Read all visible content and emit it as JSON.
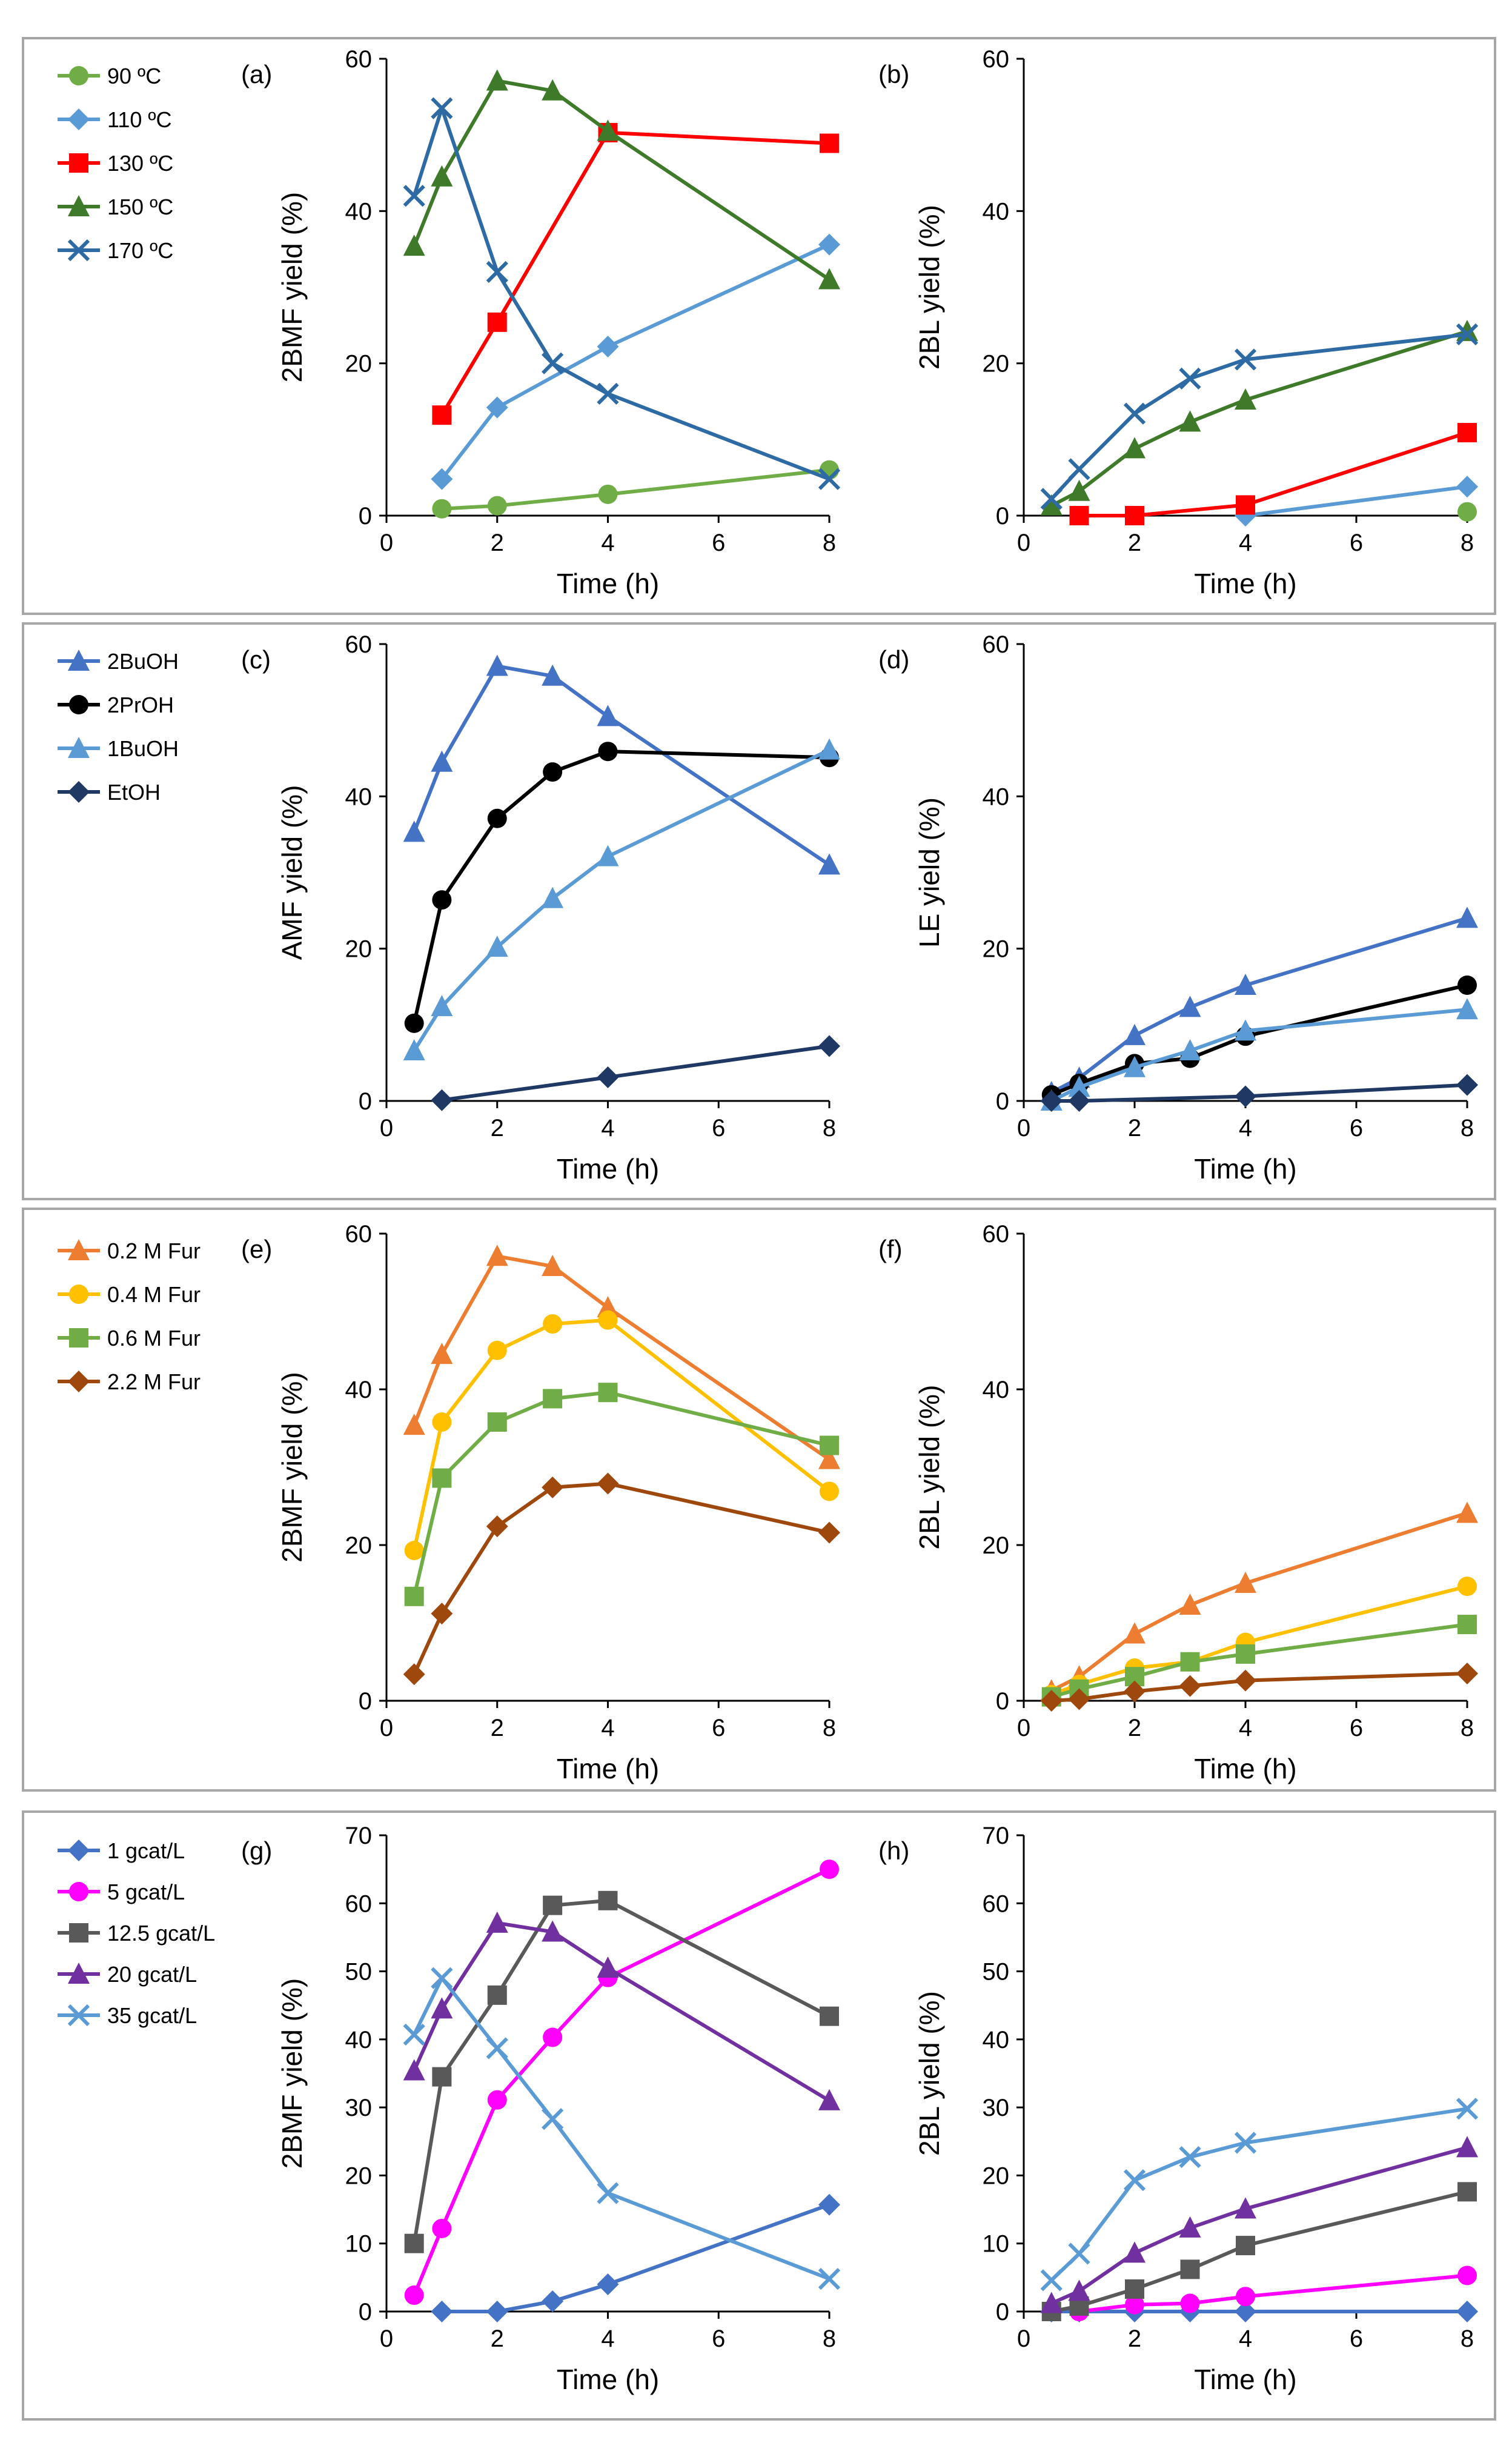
{
  "figure": "Time-course yields for panels (a)-(h)",
  "chart_data": [
    {
      "id": "a",
      "type": "line",
      "panel_label": "(a)",
      "xlabel": "Time (h)",
      "ylabel": "2BMF yield (%)",
      "xlim": [
        0,
        8
      ],
      "xticks": [
        0,
        2,
        4,
        6,
        8
      ],
      "ylim": [
        0,
        60
      ],
      "yticks": [
        0,
        20,
        40,
        60
      ],
      "legend": "left",
      "series": [
        {
          "name": "90 ºC",
          "color": "#70ad47",
          "marker": "circle",
          "x": [
            1,
            2,
            4,
            8
          ],
          "y": [
            0.9,
            1.3,
            2.8,
            6.0
          ]
        },
        {
          "name": "110 ºC",
          "color": "#5b9bd5",
          "marker": "diamond",
          "x": [
            1,
            2,
            4,
            8
          ],
          "y": [
            4.8,
            14.2,
            22.2,
            35.6
          ]
        },
        {
          "name": "130 ºC",
          "color": "#ff0000",
          "marker": "square",
          "x": [
            1,
            2,
            4,
            8
          ],
          "y": [
            13.2,
            25.4,
            50.3,
            48.9
          ]
        },
        {
          "name": "150 ºC",
          "color": "#3f7a2a",
          "marker": "triangle",
          "x": [
            0.5,
            1,
            2,
            3,
            4,
            8
          ],
          "y": [
            35.4,
            44.5,
            57.1,
            55.8,
            50.5,
            31.0
          ]
        },
        {
          "name": "170 ºC",
          "color": "#2e6aa3",
          "marker": "x",
          "x": [
            0.5,
            1,
            2,
            3,
            4,
            8
          ],
          "y": [
            42.0,
            53.5,
            32.0,
            20.0,
            16.0,
            4.8
          ]
        }
      ]
    },
    {
      "id": "b",
      "type": "line",
      "panel_label": "(b)",
      "xlabel": "Time (h)",
      "ylabel": "2BL yield (%)",
      "xlim": [
        0,
        8
      ],
      "xticks": [
        0,
        2,
        4,
        6,
        8
      ],
      "ylim": [
        0,
        60
      ],
      "yticks": [
        0,
        20,
        40,
        60
      ],
      "series": [
        {
          "name": "90 ºC",
          "color": "#70ad47",
          "marker": "circle",
          "x": [
            8
          ],
          "y": [
            0.5
          ]
        },
        {
          "name": "110 ºC",
          "color": "#5b9bd5",
          "marker": "diamond",
          "x": [
            4,
            8
          ],
          "y": [
            0.0,
            3.8
          ]
        },
        {
          "name": "130 ºC",
          "color": "#ff0000",
          "marker": "square",
          "x": [
            1,
            2,
            4,
            8
          ],
          "y": [
            0.0,
            0.0,
            1.4,
            10.9
          ]
        },
        {
          "name": "150 ºC",
          "color": "#3f7a2a",
          "marker": "triangle",
          "x": [
            0.5,
            1,
            2,
            3,
            4,
            8
          ],
          "y": [
            1.3,
            3.2,
            8.8,
            12.3,
            15.2,
            24.2
          ]
        },
        {
          "name": "170 ºC",
          "color": "#2e6aa3",
          "marker": "x",
          "x": [
            0.5,
            1,
            2,
            3,
            4,
            8
          ],
          "y": [
            2.2,
            6.1,
            13.4,
            18.0,
            20.5,
            23.8
          ]
        }
      ]
    },
    {
      "id": "c",
      "type": "line",
      "panel_label": "(c)",
      "xlabel": "Time (h)",
      "ylabel": "AMF yield (%)",
      "xlim": [
        0,
        8
      ],
      "xticks": [
        0,
        2,
        4,
        6,
        8
      ],
      "ylim": [
        0,
        60
      ],
      "yticks": [
        0,
        20,
        40,
        60
      ],
      "legend": "left",
      "series": [
        {
          "name": "2BuOH",
          "color": "#4472c4",
          "marker": "triangle",
          "x": [
            0.5,
            1,
            2,
            3,
            4,
            8
          ],
          "y": [
            35.3,
            44.5,
            57.1,
            55.8,
            50.5,
            31.0
          ]
        },
        {
          "name": "2PrOH",
          "color": "#000000",
          "marker": "circle",
          "x": [
            0.5,
            1,
            2,
            3,
            4,
            8
          ],
          "y": [
            10.2,
            26.4,
            37.1,
            43.2,
            45.9,
            45.1
          ]
        },
        {
          "name": "1BuOH",
          "color": "#5b9bd5",
          "marker": "triangle",
          "x": [
            0.5,
            1,
            2,
            3,
            4,
            8
          ],
          "y": [
            6.6,
            12.4,
            20.2,
            26.6,
            32.1,
            46.1
          ]
        },
        {
          "name": "EtOH",
          "color": "#1f3864",
          "marker": "diamond",
          "x": [
            1,
            4,
            8
          ],
          "y": [
            0.1,
            3.1,
            7.2
          ]
        }
      ]
    },
    {
      "id": "d",
      "type": "line",
      "panel_label": "(d)",
      "xlabel": "Time (h)",
      "ylabel": "LE yield (%)",
      "xlim": [
        0,
        8
      ],
      "xticks": [
        0,
        2,
        4,
        6,
        8
      ],
      "ylim": [
        0,
        60
      ],
      "yticks": [
        0,
        20,
        40,
        60
      ],
      "series": [
        {
          "name": "2BuOH",
          "color": "#4472c4",
          "marker": "triangle",
          "x": [
            0.5,
            1,
            2,
            3,
            4,
            8
          ],
          "y": [
            1.1,
            3.0,
            8.6,
            12.3,
            15.2,
            24.0
          ]
        },
        {
          "name": "2PrOH",
          "color": "#000000",
          "marker": "circle",
          "x": [
            0.5,
            1,
            2,
            3,
            4,
            8
          ],
          "y": [
            0.8,
            2.3,
            4.9,
            5.6,
            8.5,
            15.2
          ]
        },
        {
          "name": "1BuOH",
          "color": "#5b9bd5",
          "marker": "triangle",
          "x": [
            0.5,
            1,
            2,
            3,
            4,
            8
          ],
          "y": [
            0.0,
            1.8,
            4.4,
            6.6,
            9.2,
            12.0
          ]
        },
        {
          "name": "EtOH",
          "color": "#1f3864",
          "marker": "diamond",
          "x": [
            0.5,
            1,
            4,
            8
          ],
          "y": [
            0.0,
            0.0,
            0.6,
            2.1
          ]
        }
      ]
    },
    {
      "id": "e",
      "type": "line",
      "panel_label": "(e)",
      "xlabel": "Time (h)",
      "ylabel": "2BMF yield (%)",
      "xlim": [
        0,
        8
      ],
      "xticks": [
        0,
        2,
        4,
        6,
        8
      ],
      "ylim": [
        0,
        60
      ],
      "yticks": [
        0,
        20,
        40,
        60
      ],
      "legend": "left",
      "series": [
        {
          "name": "0.2 M Fur",
          "color": "#ed7d31",
          "marker": "triangle",
          "x": [
            0.5,
            1,
            2,
            3,
            4,
            8
          ],
          "y": [
            35.4,
            44.5,
            57.1,
            55.8,
            50.5,
            31.0
          ]
        },
        {
          "name": "0.4 M Fur",
          "color": "#ffc000",
          "marker": "circle",
          "x": [
            0.5,
            1,
            2,
            3,
            4,
            8
          ],
          "y": [
            19.3,
            35.8,
            45.0,
            48.4,
            48.9,
            26.9
          ]
        },
        {
          "name": "0.6 M Fur",
          "color": "#70ad47",
          "marker": "square",
          "x": [
            0.5,
            1,
            2,
            3,
            4,
            8
          ],
          "y": [
            13.4,
            28.6,
            35.8,
            38.8,
            39.6,
            32.8
          ]
        },
        {
          "name": "2.2 M Fur",
          "color": "#9e480e",
          "marker": "diamond",
          "x": [
            0.5,
            1,
            2,
            3,
            4,
            8
          ],
          "y": [
            3.4,
            11.2,
            22.4,
            27.4,
            27.9,
            21.6
          ]
        }
      ]
    },
    {
      "id": "f",
      "type": "line",
      "panel_label": "(f)",
      "xlabel": "Time (h)",
      "ylabel": "2BL yield (%)",
      "xlim": [
        0,
        8
      ],
      "xticks": [
        0,
        2,
        4,
        6,
        8
      ],
      "ylim": [
        0,
        60
      ],
      "yticks": [
        0,
        20,
        40,
        60
      ],
      "series": [
        {
          "name": "0.2 M Fur",
          "color": "#ed7d31",
          "marker": "triangle",
          "x": [
            0.5,
            1,
            2,
            3,
            4,
            8
          ],
          "y": [
            1.3,
            3.1,
            8.6,
            12.3,
            15.1,
            24.1
          ]
        },
        {
          "name": "0.4 M Fur",
          "color": "#ffc000",
          "marker": "circle",
          "x": [
            0.5,
            1,
            2,
            3,
            4,
            8
          ],
          "y": [
            0.8,
            2.1,
            4.2,
            5.0,
            7.5,
            14.7
          ]
        },
        {
          "name": "0.6 M Fur",
          "color": "#70ad47",
          "marker": "square",
          "x": [
            0.5,
            1,
            2,
            3,
            4,
            8
          ],
          "y": [
            0.5,
            1.5,
            3.1,
            5.0,
            6.0,
            9.8
          ]
        },
        {
          "name": "2.2 M Fur",
          "color": "#9e480e",
          "marker": "diamond",
          "x": [
            0.5,
            1,
            2,
            3,
            4,
            8
          ],
          "y": [
            0.0,
            0.2,
            1.2,
            1.9,
            2.6,
            3.5
          ]
        }
      ]
    },
    {
      "id": "g",
      "type": "line",
      "panel_label": "(g)",
      "xlabel": "Time (h)",
      "ylabel": "2BMF yield (%)",
      "xlim": [
        0,
        8
      ],
      "xticks": [
        0,
        2,
        4,
        6,
        8
      ],
      "ylim": [
        0,
        70
      ],
      "yticks": [
        0,
        10,
        20,
        30,
        40,
        50,
        60,
        70
      ],
      "legend": "left",
      "series": [
        {
          "name": "1 gcat/L",
          "color": "#4472c4",
          "marker": "diamond",
          "x": [
            1,
            2,
            3,
            4,
            8
          ],
          "y": [
            0.0,
            0.0,
            1.5,
            4.0,
            15.7
          ]
        },
        {
          "name": "5 gcat/L",
          "color": "#ff00ff",
          "marker": "circle",
          "x": [
            0.5,
            1,
            2,
            3,
            4,
            8
          ],
          "y": [
            2.4,
            12.2,
            31.1,
            40.3,
            49.1,
            65.0
          ]
        },
        {
          "name": "12.5 gcat/L",
          "color": "#595959",
          "marker": "square",
          "x": [
            0.5,
            1,
            2,
            3,
            4,
            8
          ],
          "y": [
            10.0,
            34.5,
            46.5,
            59.7,
            60.4,
            43.4
          ]
        },
        {
          "name": "20 gcat/L",
          "color": "#7030a0",
          "marker": "triangle",
          "x": [
            0.5,
            1,
            2,
            3,
            4,
            8
          ],
          "y": [
            35.4,
            44.5,
            57.1,
            55.8,
            50.5,
            31.0
          ]
        },
        {
          "name": "35 gcat/L",
          "color": "#5b9bd5",
          "marker": "x",
          "x": [
            0.5,
            1,
            2,
            3,
            4,
            8
          ],
          "y": [
            40.7,
            49.0,
            38.7,
            28.3,
            17.4,
            4.8
          ]
        }
      ]
    },
    {
      "id": "h",
      "type": "line",
      "panel_label": "(h)",
      "xlabel": "Time (h)",
      "ylabel": "2BL yield (%)",
      "xlim": [
        0,
        8
      ],
      "xticks": [
        0,
        2,
        4,
        6,
        8
      ],
      "ylim": [
        0,
        70
      ],
      "yticks": [
        0,
        10,
        20,
        30,
        40,
        50,
        60,
        70
      ],
      "series": [
        {
          "name": "1 gcat/L",
          "color": "#4472c4",
          "marker": "diamond",
          "x": [
            0.5,
            1,
            2,
            3,
            4,
            8
          ],
          "y": [
            0.0,
            0.0,
            0.0,
            0.0,
            0.0,
            0.0
          ]
        },
        {
          "name": "5 gcat/L",
          "color": "#ff00ff",
          "marker": "circle",
          "x": [
            1,
            2,
            3,
            4,
            8
          ],
          "y": [
            0.0,
            1.0,
            1.2,
            2.2,
            5.3
          ]
        },
        {
          "name": "12.5 gcat/L",
          "color": "#595959",
          "marker": "square",
          "x": [
            0.5,
            1,
            2,
            3,
            4,
            8
          ],
          "y": [
            0.0,
            0.8,
            3.3,
            6.2,
            9.7,
            17.6
          ]
        },
        {
          "name": "20 gcat/L",
          "color": "#7030a0",
          "marker": "triangle",
          "x": [
            0.5,
            1,
            2,
            3,
            4,
            8
          ],
          "y": [
            1.2,
            3.0,
            8.6,
            12.3,
            15.1,
            24.1
          ]
        },
        {
          "name": "35 gcat/L",
          "color": "#5b9bd5",
          "marker": "x",
          "x": [
            0.5,
            1,
            2,
            3,
            4,
            8
          ],
          "y": [
            4.6,
            8.5,
            19.3,
            22.7,
            24.8,
            29.8
          ]
        }
      ]
    }
  ]
}
